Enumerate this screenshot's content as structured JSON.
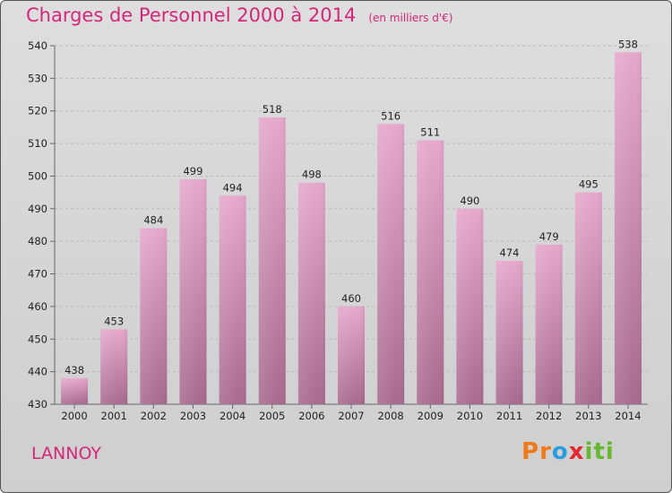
{
  "header": {
    "title": "Charges de Personnel 2000 à 2014",
    "unit": "(en milliers d'€)"
  },
  "footer": {
    "place": "LANNOY",
    "logo": [
      "P",
      "r",
      "o",
      "x",
      "i",
      "t",
      "i"
    ]
  },
  "colors": {
    "title": "#d6267a",
    "bar_top": "#e6a8cb",
    "bar_bottom": "#a86a8e",
    "logo": [
      "#f07a1a",
      "#f07a1a",
      "#2a9de0",
      "#e3262f",
      "#66b82e",
      "#66b82e",
      "#66b82e"
    ]
  },
  "chart_data": {
    "type": "bar",
    "title": "Charges de Personnel 2000 à 2014",
    "subtitle": "(en milliers d'€)",
    "categories": [
      "2000",
      "2001",
      "2002",
      "2003",
      "2004",
      "2005",
      "2006",
      "2007",
      "2008",
      "2009",
      "2010",
      "2011",
      "2012",
      "2013",
      "2014"
    ],
    "values": [
      438,
      453,
      484,
      499,
      494,
      518,
      498,
      460,
      516,
      511,
      490,
      474,
      479,
      495,
      538
    ],
    "ylim": [
      430,
      540
    ],
    "yticks": [
      430,
      440,
      450,
      460,
      470,
      480,
      490,
      500,
      510,
      520,
      530,
      540
    ],
    "grid": true,
    "xlabel": "",
    "ylabel": ""
  }
}
